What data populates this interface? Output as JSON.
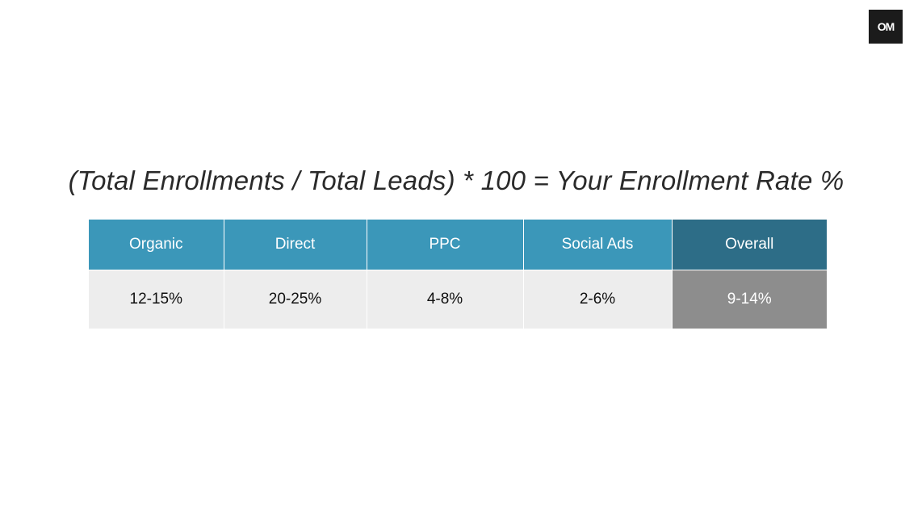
{
  "logo": {
    "text": "OM"
  },
  "formula": "(Total Enrollments / Total Leads) * 100 = Your Enrollment Rate %",
  "table": {
    "headers": [
      "Organic",
      "Direct",
      "PPC",
      "Social Ads",
      "Overall"
    ],
    "values": [
      "12-15%",
      "20-25%",
      "4-8%",
      "2-6%",
      "9-14%"
    ]
  },
  "colors": {
    "header": "#3b97b9",
    "header_overall": "#2d6d87",
    "cell": "#ededed",
    "cell_overall": "#8d8d8d"
  }
}
